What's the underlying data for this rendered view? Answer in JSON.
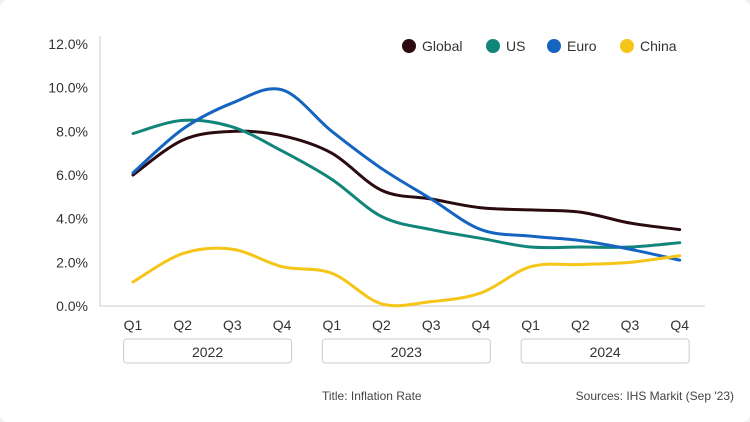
{
  "chart_data": {
    "type": "line",
    "title": "",
    "xlabel": "",
    "ylabel": "",
    "ylim": [
      0,
      12
    ],
    "yticks": [
      "0.0%",
      "2.0%",
      "4.0%",
      "6.0%",
      "8.0%",
      "10.0%",
      "12.0%"
    ],
    "x": [
      "Q1",
      "Q2",
      "Q3",
      "Q4",
      "Q1",
      "Q2",
      "Q3",
      "Q4",
      "Q1",
      "Q2",
      "Q3",
      "Q4"
    ],
    "years": [
      "2022",
      "2023",
      "2024"
    ],
    "grid": false,
    "legend": "top-right",
    "series": [
      {
        "name": "Global",
        "color": "#2b0a10",
        "values": [
          6.0,
          7.6,
          8.0,
          7.8,
          7.0,
          5.3,
          4.9,
          4.5,
          4.4,
          4.3,
          3.8,
          3.5
        ]
      },
      {
        "name": "US",
        "color": "#12857a",
        "values": [
          7.9,
          8.5,
          8.2,
          7.1,
          5.8,
          4.1,
          3.5,
          3.1,
          2.7,
          2.7,
          2.7,
          2.9
        ]
      },
      {
        "name": "Euro",
        "color": "#1565c0",
        "values": [
          6.1,
          8.1,
          9.3,
          9.9,
          8.0,
          6.3,
          4.9,
          3.5,
          3.2,
          3.0,
          2.6,
          2.1
        ]
      },
      {
        "name": "China",
        "color": "#f5c518",
        "values": [
          1.1,
          2.4,
          2.6,
          1.8,
          1.5,
          0.1,
          0.2,
          0.6,
          1.8,
          1.9,
          2.0,
          2.3
        ]
      }
    ]
  },
  "footer": {
    "title": "Title: Inflation Rate",
    "source": "Sources: IHS Markit (Sep '23)"
  }
}
